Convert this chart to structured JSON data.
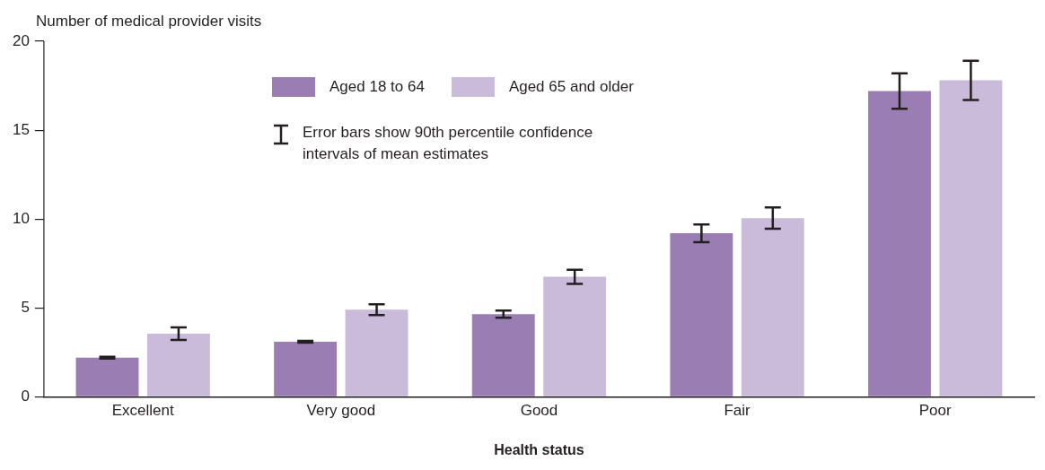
{
  "chart_data": {
    "type": "bar",
    "ylabel": "Number of medical provider visits",
    "xlabel": "Health status",
    "categories": [
      "Excellent",
      "Very good",
      "Good",
      "Fair",
      "Poor"
    ],
    "series": [
      {
        "name": "Aged 18 to 64",
        "color": "#9a7db3",
        "values": [
          2.2,
          3.1,
          4.65,
          9.2,
          17.2
        ],
        "errors": [
          0.05,
          0.05,
          0.2,
          0.5,
          1.0
        ]
      },
      {
        "name": "Aged 65 and older",
        "color": "#c9bbd9",
        "values": [
          3.55,
          4.9,
          6.75,
          10.05,
          17.8
        ],
        "errors": [
          0.35,
          0.3,
          0.4,
          0.6,
          1.1
        ]
      }
    ],
    "ylim": [
      0,
      20
    ],
    "yticks": [
      0,
      5,
      10,
      15,
      20
    ],
    "grid": false,
    "legend": "top",
    "annotations": [
      "Error bars show 90th percentile confidence intervals of mean estimates"
    ]
  }
}
